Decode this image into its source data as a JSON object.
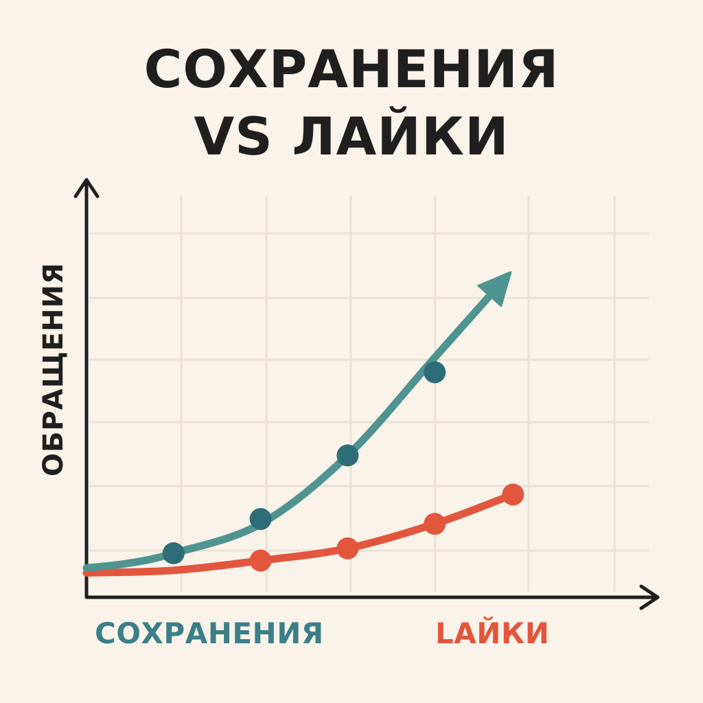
{
  "chart_data": {
    "type": "line",
    "title": [
      "СОХРАНЕНИЯ",
      "VS ЛАЙКИ"
    ],
    "ylabel": "ОБРАЩЕНИЯ",
    "xlabel": "",
    "x": [
      0,
      1,
      2,
      3,
      4,
      5
    ],
    "xlim": [
      0,
      5
    ],
    "ylim": [
      0,
      8
    ],
    "grid": true,
    "legend_placement": "bottom",
    "series": [
      {
        "name": "СОХРАНЕНИЯ",
        "color": "#4f9490",
        "label_color": "#3b7f88",
        "curve_x": [
          0,
          0.5,
          1,
          2,
          3,
          4,
          4.8
        ],
        "curve_y": [
          0.6,
          0.7,
          0.9,
          1.5,
          2.9,
          4.9,
          6.5
        ],
        "points_x": [
          1,
          2,
          3,
          4
        ],
        "points_y": [
          0.9,
          1.6,
          2.9,
          4.6
        ],
        "arrow": true
      },
      {
        "name": "LАЙКИ",
        "color": "#e2563d",
        "label_color": "#e2563d",
        "curve_x": [
          0,
          1,
          2,
          3,
          4,
          4.9
        ],
        "curve_y": [
          0.5,
          0.55,
          0.75,
          1.0,
          1.5,
          2.1
        ],
        "points_x": [
          2,
          3,
          4,
          4.9
        ],
        "points_y": [
          0.75,
          1.0,
          1.5,
          2.1
        ],
        "arrow": false
      }
    ],
    "colors": {
      "axis": "#1f1f1f",
      "grid": "#ece2d2",
      "background": "#f9f3ea"
    }
  }
}
